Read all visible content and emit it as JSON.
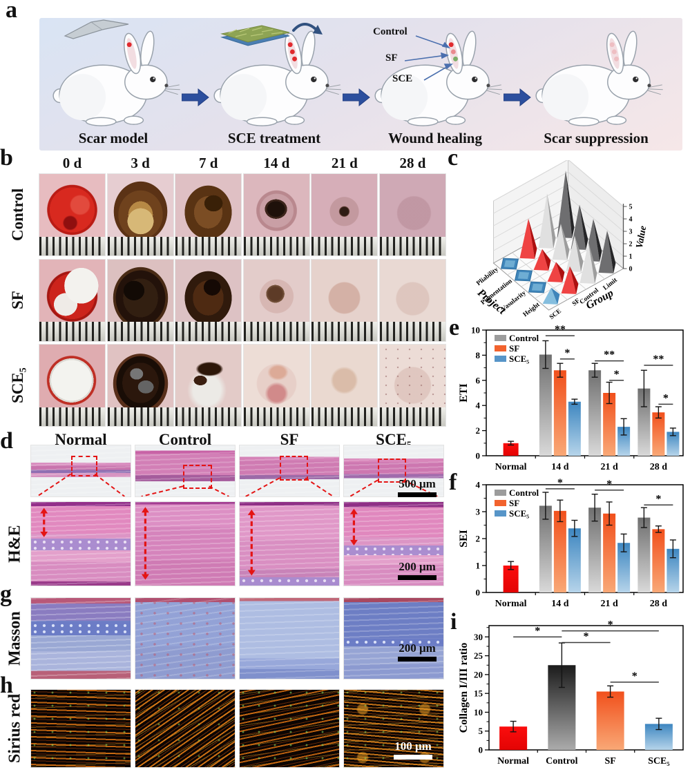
{
  "panels": {
    "a": "a",
    "b": "b",
    "c": "c",
    "d": "d",
    "e": "e",
    "f": "f",
    "g": "g",
    "h": "h",
    "i": "i"
  },
  "panel_a": {
    "steps": [
      {
        "label": "Scar model",
        "icon": "scalpel-icon",
        "ear_dots": [
          "red"
        ]
      },
      {
        "label": "SCE treatment",
        "icon": "sce-mat-icon",
        "ear_dots": [
          "red",
          "red",
          "red"
        ]
      },
      {
        "label": "Wound healing",
        "icon": null,
        "ear_dots": [
          "red",
          "pink",
          "green"
        ],
        "annotations": [
          "Control",
          "SF",
          "SCE"
        ]
      },
      {
        "label": "Scar suppression",
        "icon": null,
        "ear_dots": [
          "faded",
          "faded",
          "faded"
        ]
      }
    ]
  },
  "panel_b": {
    "columns": [
      "0 d",
      "3 d",
      "7 d",
      "14 d",
      "21 d",
      "28 d"
    ],
    "rows": [
      {
        "label": "Control",
        "cells": [
          "fresh-red-wound",
          "tan-scab",
          "brown-scab",
          "central-dark-scab",
          "small-dark-spot",
          "healed-pink"
        ]
      },
      {
        "label": "SF",
        "cells": [
          "red-wound-white-patch",
          "dark-scab",
          "dark-brown-scab",
          "small-brown-scab",
          "healing-faint",
          "healed-faint"
        ]
      },
      {
        "label": "SCE₅",
        "cells": [
          "white-disc",
          "dark-glossy-scab",
          "broken-scab-white",
          "pink-patches",
          "pale-healing",
          "pale-speckled"
        ]
      }
    ]
  },
  "panel_d": {
    "columns": [
      "Normal",
      "Control",
      "SF",
      "SCE₅"
    ],
    "row_label": "H&E",
    "scalebar_top": "500 μm",
    "scalebar_bottom": "200 μm"
  },
  "panel_g": {
    "row_label": "Masson",
    "scalebar": "200 μm"
  },
  "panel_h": {
    "row_label": "Sirius red",
    "scalebar": "100 μm"
  },
  "chart_data": [
    {
      "id": "c",
      "type": "pyramid3d",
      "value_axis": {
        "label": "Value",
        "range": [
          0,
          5
        ],
        "ticks": [
          0,
          1,
          2,
          3,
          4,
          5
        ]
      },
      "project_axis": {
        "label": "Project",
        "ticks": [
          "Pliability",
          "Pigmentation",
          "Vasularity",
          "Height"
        ]
      },
      "group_axis": {
        "label": "Group",
        "ticks": [
          "SCE",
          "SF",
          "Control",
          "Limit"
        ]
      },
      "series": [
        {
          "name": "SCE",
          "color_light": "#85bede",
          "color_dark": "#3f85ba",
          "values": [
            0.15,
            0.15,
            0.15,
            0.9
          ]
        },
        {
          "name": "SF",
          "color_light": "#ef4343",
          "color_dark": "#ad0f0f",
          "values": [
            2.8,
            1.3,
            1.2,
            1.8
          ]
        },
        {
          "name": "Control",
          "color_light": "#e0e0e0",
          "color_dark": "#9d9d9d",
          "values": [
            4.0,
            2.5,
            2.5,
            2.9
          ]
        },
        {
          "name": "Limit",
          "color_light": "#6e6e70",
          "color_dark": "#252527",
          "values": [
            5.0,
            3.2,
            3.0,
            3.0
          ]
        }
      ]
    },
    {
      "id": "e",
      "type": "bar",
      "ylabel": "ETI",
      "ylim": [
        0,
        10
      ],
      "yticks": [
        0,
        2,
        4,
        6,
        8,
        10
      ],
      "categories": [
        "Normal",
        "14 d",
        "21 d",
        "28 d"
      ],
      "series": [
        {
          "name": "Control",
          "swatch": "#9c9c9c",
          "grad": [
            "#6f6f6f",
            "#d9d9d9"
          ],
          "legend": true,
          "values": [
            null,
            8.05,
            6.8,
            5.35
          ],
          "errors": [
            null,
            1.1,
            0.55,
            1.45
          ]
        },
        {
          "name": "SF",
          "swatch": "#f2622d",
          "grad": [
            "#f1501c",
            "#f9a876"
          ],
          "legend": true,
          "values": [
            null,
            6.8,
            5.0,
            3.45
          ],
          "errors": [
            null,
            0.55,
            0.85,
            0.45
          ]
        },
        {
          "name": "SCE₅",
          "swatch": "#5795c8",
          "grad": [
            "#3d86c0",
            "#b6d4ea"
          ],
          "legend": true,
          "values": [
            null,
            4.3,
            2.3,
            1.9
          ],
          "errors": [
            null,
            0.2,
            0.65,
            0.3
          ]
        },
        {
          "name": "Normal",
          "swatch": "#f20d0d",
          "grad": [
            "#fb0d0d",
            "#e30404"
          ],
          "legend": false,
          "values": [
            1.0,
            null,
            null,
            null
          ],
          "errors": [
            0.15,
            null,
            null,
            null
          ]
        }
      ],
      "sig": [
        {
          "a": [
            1,
            0
          ],
          "b": [
            1,
            2
          ],
          "y": 9.55,
          "label": "**"
        },
        {
          "a": [
            1,
            1
          ],
          "b": [
            1,
            2
          ],
          "y": 7.7,
          "label": "*"
        },
        {
          "a": [
            2,
            0
          ],
          "b": [
            2,
            2
          ],
          "y": 7.55,
          "label": "**"
        },
        {
          "a": [
            2,
            1
          ],
          "b": [
            2,
            2
          ],
          "y": 6.0,
          "label": "*"
        },
        {
          "a": [
            3,
            0
          ],
          "b": [
            3,
            2
          ],
          "y": 7.2,
          "label": "**"
        },
        {
          "a": [
            3,
            1
          ],
          "b": [
            3,
            2
          ],
          "y": 4.1,
          "label": "*"
        }
      ]
    },
    {
      "id": "f",
      "type": "bar",
      "ylabel": "SEI",
      "ylim": [
        0,
        4
      ],
      "yticks": [
        0,
        1,
        2,
        3,
        4
      ],
      "categories": [
        "Normal",
        "14 d",
        "21 d",
        "28 d"
      ],
      "series": [
        {
          "name": "Control",
          "swatch": "#9c9c9c",
          "grad": [
            "#6f6f6f",
            "#d9d9d9"
          ],
          "legend": true,
          "values": [
            null,
            3.22,
            3.15,
            2.78
          ],
          "errors": [
            null,
            0.5,
            0.5,
            0.37
          ]
        },
        {
          "name": "SF",
          "swatch": "#f2622d",
          "grad": [
            "#f1501c",
            "#f9a876"
          ],
          "legend": true,
          "values": [
            null,
            3.03,
            2.93,
            2.35
          ],
          "errors": [
            null,
            0.4,
            0.43,
            0.12
          ]
        },
        {
          "name": "SCE₅",
          "swatch": "#5795c8",
          "grad": [
            "#3d86c0",
            "#b6d4ea"
          ],
          "legend": true,
          "values": [
            null,
            2.38,
            1.84,
            1.62
          ],
          "errors": [
            null,
            0.3,
            0.33,
            0.33
          ]
        },
        {
          "name": "Normal",
          "swatch": "#f20d0d",
          "grad": [
            "#fb0d0d",
            "#e30404"
          ],
          "legend": false,
          "values": [
            1.0,
            null,
            null,
            null
          ],
          "errors": [
            0.15,
            null,
            null,
            null
          ]
        }
      ],
      "sig": [
        {
          "a": [
            1,
            0
          ],
          "b": [
            1,
            2
          ],
          "y": 3.85,
          "label": "*"
        },
        {
          "a": [
            2,
            0
          ],
          "b": [
            2,
            2
          ],
          "y": 3.8,
          "label": "*"
        },
        {
          "a": [
            3,
            0
          ],
          "b": [
            3,
            2
          ],
          "y": 3.25,
          "label": "*"
        }
      ]
    },
    {
      "id": "i",
      "type": "bar",
      "ylabel": "Collagen I/III ratio",
      "ylim": [
        0,
        33
      ],
      "yticks": [
        0,
        5,
        10,
        15,
        20,
        25,
        30
      ],
      "categories": [
        "Normal",
        "Control",
        "SF",
        "SCE₅"
      ],
      "series": [
        {
          "name": "ratio",
          "legend": false,
          "per_bar_grad": [
            [
              "#fb0d0d",
              "#e30404"
            ],
            [
              "#1b1b1b",
              "#ababab"
            ],
            [
              "#f1501c",
              "#f9a876"
            ],
            [
              "#3d86c0",
              "#b6d4ea"
            ]
          ],
          "values": [
            6.2,
            22.5,
            15.5,
            6.9
          ],
          "errors": [
            1.4,
            5.9,
            1.5,
            1.5
          ]
        }
      ],
      "sig": [
        {
          "a": [
            0,
            0
          ],
          "b": [
            1,
            0
          ],
          "y": 30.0,
          "label": "*"
        },
        {
          "a": [
            1,
            0
          ],
          "b": [
            2,
            0
          ],
          "y": 28.5,
          "label": "*"
        },
        {
          "a": [
            1,
            0
          ],
          "b": [
            3,
            0
          ],
          "y": 31.6,
          "label": "*"
        },
        {
          "a": [
            2,
            0
          ],
          "b": [
            3,
            0
          ],
          "y": 18.0,
          "label": "*"
        }
      ]
    }
  ]
}
